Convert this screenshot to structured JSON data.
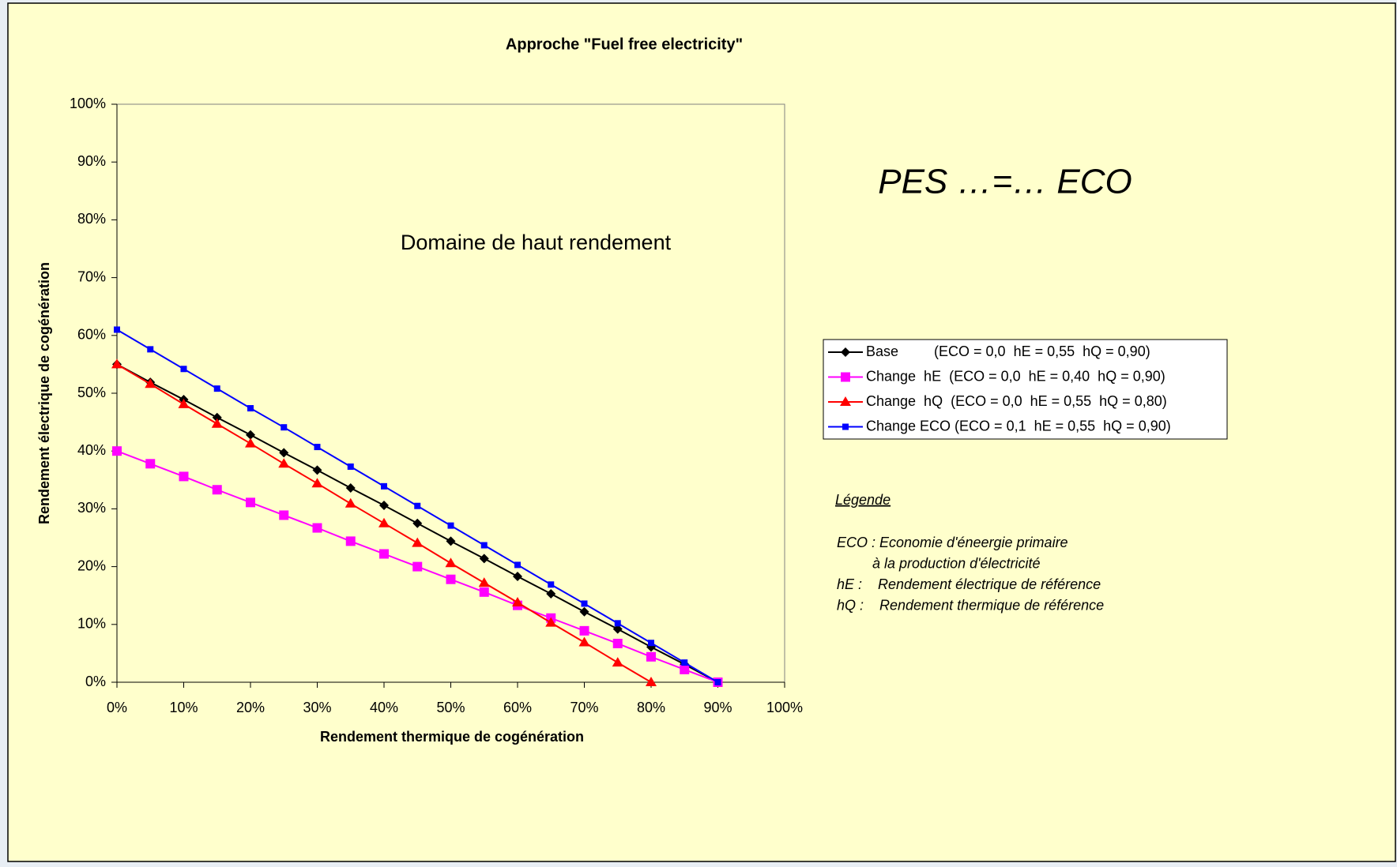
{
  "chart_data": {
    "type": "line",
    "title": "Approche \"Fuel free electricity\"",
    "xlabel": "Rendement thermique de cogénération",
    "ylabel": "Rendement électrique de cogénération",
    "annotation": "Domaine de haut rendement",
    "headline": "PES …=… ECO",
    "x": [
      0,
      5,
      10,
      15,
      20,
      25,
      30,
      35,
      40,
      45,
      50,
      55,
      60,
      65,
      70,
      75,
      80,
      85,
      90
    ],
    "series": [
      {
        "name": "Base         (ECO = 0,0  hE = 0,55  hQ = 0,90)",
        "color": "#000000",
        "marker": "diamond",
        "values": [
          55,
          51.9,
          48.9,
          45.8,
          42.8,
          39.7,
          36.7,
          33.6,
          30.6,
          27.5,
          24.4,
          21.4,
          18.3,
          15.3,
          12.2,
          9.2,
          6.1,
          3.1,
          0
        ]
      },
      {
        "name": "Change  hE  (ECO = 0,0  hE = 0,40  hQ = 0,90)",
        "color": "#ff00ff",
        "marker": "square",
        "values": [
          40,
          37.8,
          35.6,
          33.3,
          31.1,
          28.9,
          26.7,
          24.4,
          22.2,
          20,
          17.8,
          15.6,
          13.3,
          11.1,
          8.9,
          6.7,
          4.4,
          2.2,
          0
        ]
      },
      {
        "name": "Change  hQ  (ECO = 0,0  hE = 0,55  hQ = 0,80)",
        "color": "#ff0000",
        "marker": "triangle",
        "values": [
          55,
          51.6,
          48.1,
          44.7,
          41.3,
          37.8,
          34.4,
          30.9,
          27.5,
          24.1,
          20.6,
          17.2,
          13.8,
          10.3,
          6.9,
          3.4,
          0,
          null,
          null
        ]
      },
      {
        "name": "Change ECO (ECO = 0,1  hE = 0,55  hQ = 0,90)",
        "color": "#0000ff",
        "marker": "smallsquare",
        "values": [
          61,
          57.6,
          54.2,
          50.8,
          47.4,
          44.1,
          40.7,
          37.3,
          33.9,
          30.5,
          27.1,
          23.7,
          20.3,
          16.9,
          13.6,
          10.2,
          6.8,
          3.4,
          0
        ]
      }
    ],
    "xlim": [
      0,
      100
    ],
    "xticks": [
      {
        "value": 0,
        "label": "0%"
      },
      {
        "value": 10,
        "label": "10%"
      },
      {
        "value": 20,
        "label": "20%"
      },
      {
        "value": 30,
        "label": "30%"
      },
      {
        "value": 40,
        "label": "40%"
      },
      {
        "value": 50,
        "label": "50%"
      },
      {
        "value": 60,
        "label": "60%"
      },
      {
        "value": 70,
        "label": "70%"
      },
      {
        "value": 80,
        "label": "80%"
      },
      {
        "value": 90,
        "label": "90%"
      },
      {
        "value": 100,
        "label": "100%"
      }
    ],
    "ylim": [
      0,
      100
    ],
    "yticks": [
      {
        "value": 0,
        "label": "0%"
      },
      {
        "value": 10,
        "label": "10%"
      },
      {
        "value": 20,
        "label": "20%"
      },
      {
        "value": 30,
        "label": "30%"
      },
      {
        "value": 40,
        "label": "40%"
      },
      {
        "value": 50,
        "label": "50%"
      },
      {
        "value": 60,
        "label": "60%"
      },
      {
        "value": 70,
        "label": "70%"
      },
      {
        "value": 80,
        "label": "80%"
      },
      {
        "value": 90,
        "label": "90%"
      },
      {
        "value": 100,
        "label": "100%"
      }
    ],
    "grid": false,
    "legend": "right",
    "notes": {
      "title": "Légende",
      "lines": [
        "ECO : Economie d'éneergie primaire",
        "         à la production d'électricité",
        "hE :    Rendement électrique de référence",
        "hQ :    Rendement thermique de référence"
      ]
    }
  }
}
